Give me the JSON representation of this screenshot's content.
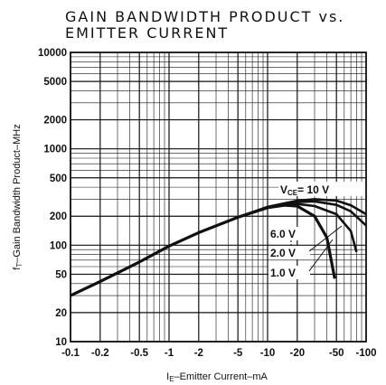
{
  "chart_data": {
    "type": "line",
    "title": [
      "GAIN BANDWIDTH PRODUCT vs.",
      "EMITTER CURRENT"
    ],
    "xlabel": {
      "symbol": "I",
      "sub": "E",
      "rest": "–Emitter Current–mA"
    },
    "ylabel": {
      "symbol": "f",
      "sub": "T",
      "rest": "–Gain Bandwidth Product–MHz"
    },
    "x_scale": "log",
    "y_scale": "log",
    "xlim": [
      0.1,
      100
    ],
    "ylim": [
      10,
      10000
    ],
    "grid": true,
    "x_ticks": [
      {
        "value": 0.1,
        "label": "-0.1"
      },
      {
        "value": 0.2,
        "label": "-0.2"
      },
      {
        "value": 0.5,
        "label": "-0.5"
      },
      {
        "value": 1,
        "label": "-1"
      },
      {
        "value": 2,
        "label": "-2"
      },
      {
        "value": 5,
        "label": "-5"
      },
      {
        "value": 10,
        "label": "-10"
      },
      {
        "value": 20,
        "label": "-20"
      },
      {
        "value": 50,
        "label": "-50"
      },
      {
        "value": 100,
        "label": "-100"
      }
    ],
    "y_ticks": [
      {
        "value": 10,
        "label": "10"
      },
      {
        "value": 20,
        "label": "20"
      },
      {
        "value": 50,
        "label": "50"
      },
      {
        "value": 100,
        "label": "100"
      },
      {
        "value": 200,
        "label": "200"
      },
      {
        "value": 500,
        "label": "500"
      },
      {
        "value": 1000,
        "label": "1000"
      },
      {
        "value": 2000,
        "label": "2000"
      },
      {
        "value": 5000,
        "label": "5000"
      },
      {
        "value": 10000,
        "label": "10000"
      }
    ],
    "series": [
      {
        "name": "1.0 V",
        "x": [
          0.1,
          0.2,
          0.5,
          1,
          2,
          5,
          10,
          15,
          20,
          30,
          40,
          48
        ],
        "y": [
          30,
          42,
          67,
          98,
          135,
          195,
          245,
          260,
          255,
          200,
          120,
          45
        ]
      },
      {
        "name": "2.0 V",
        "x": [
          0.1,
          0.2,
          0.5,
          1,
          2,
          5,
          10,
          15,
          20,
          30,
          50,
          70,
          80
        ],
        "y": [
          30,
          42,
          67,
          98,
          135,
          195,
          245,
          262,
          268,
          255,
          210,
          140,
          85
        ]
      },
      {
        "name": "6.0 V",
        "x": [
          0.1,
          0.2,
          0.5,
          1,
          2,
          5,
          10,
          20,
          30,
          50,
          70,
          100
        ],
        "y": [
          30,
          42,
          67,
          98,
          135,
          195,
          248,
          280,
          285,
          262,
          225,
          160
        ]
      },
      {
        "name": "VCE = 10 V",
        "x": [
          0.1,
          0.2,
          0.5,
          1,
          2,
          5,
          10,
          20,
          30,
          50,
          70,
          100
        ],
        "y": [
          30,
          42,
          67,
          98,
          135,
          195,
          250,
          290,
          300,
          290,
          260,
          210
        ]
      }
    ],
    "annotations": {
      "vce": {
        "sym": "V",
        "sub": "CE",
        "rest": "= 10  V"
      },
      "v6": "6.0  V",
      "v2": "2.0  V",
      "v1": "1.0  V"
    }
  }
}
